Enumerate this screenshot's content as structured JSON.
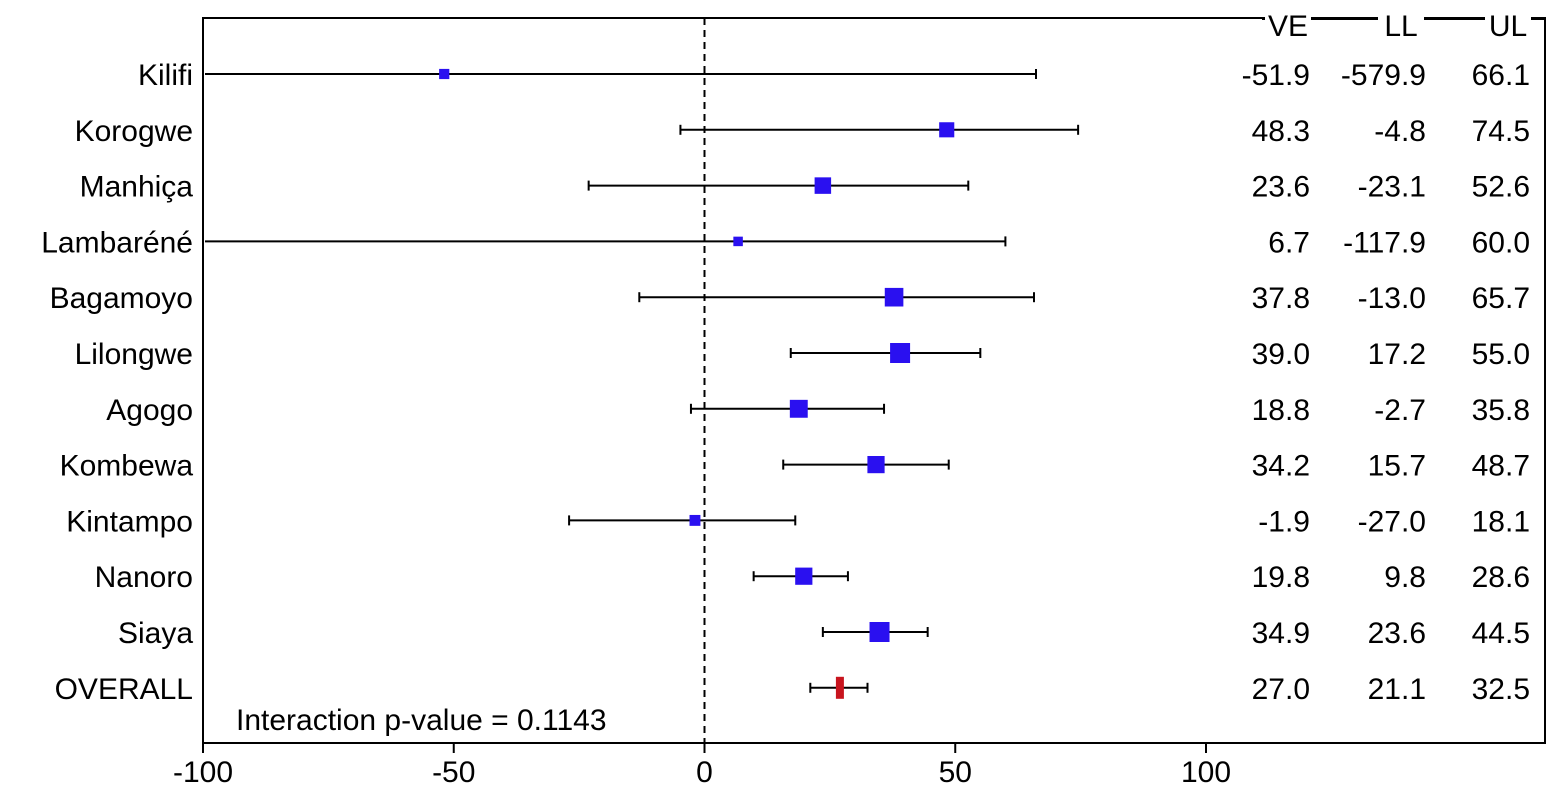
{
  "chart_data": {
    "type": "forest",
    "xlim": [
      -100,
      100
    ],
    "xticks": [
      -100,
      -50,
      0,
      50,
      100
    ],
    "reference_line": 0,
    "table_headers": [
      "VE",
      "LL",
      "UL"
    ],
    "annotation": "Interaction p-value = 0.1143",
    "colors": {
      "site_marker": "#2a10f0",
      "overall_marker": "#c8141e",
      "line": "#000000"
    },
    "rows": [
      {
        "label": "Kilifi",
        "ve": -51.9,
        "ll": -579.9,
        "ul": 66.1,
        "ve_text": "-51.9",
        "ll_text": "-579.9",
        "ul_text": "66.1",
        "weight": 0.3,
        "overall": false
      },
      {
        "label": "Korogwe",
        "ve": 48.3,
        "ll": -4.8,
        "ul": 74.5,
        "ve_text": "48.3",
        "ll_text": "-4.8",
        "ul_text": "74.5",
        "weight": 0.65,
        "overall": false
      },
      {
        "label": "Manhiça",
        "ve": 23.6,
        "ll": -23.1,
        "ul": 52.6,
        "ve_text": "23.6",
        "ll_text": "-23.1",
        "ul_text": "52.6",
        "weight": 0.75,
        "overall": false
      },
      {
        "label": "Lambaréné",
        "ve": 6.7,
        "ll": -117.9,
        "ul": 60.0,
        "ve_text": "6.7",
        "ll_text": "-117.9",
        "ul_text": "60.0",
        "weight": 0.25,
        "overall": false
      },
      {
        "label": "Bagamoyo",
        "ve": 37.8,
        "ll": -13.0,
        "ul": 65.7,
        "ve_text": "37.8",
        "ll_text": "-13.0",
        "ul_text": "65.7",
        "weight": 0.9,
        "overall": false
      },
      {
        "label": "Lilongwe",
        "ve": 39.0,
        "ll": 17.2,
        "ul": 55.0,
        "ve_text": "39.0",
        "ll_text": "17.2",
        "ul_text": "55.0",
        "weight": 1.0,
        "overall": false
      },
      {
        "label": "Agogo",
        "ve": 18.8,
        "ll": -2.7,
        "ul": 35.8,
        "ve_text": "18.8",
        "ll_text": "-2.7",
        "ul_text": "35.8",
        "weight": 0.85,
        "overall": false
      },
      {
        "label": "Kombewa",
        "ve": 34.2,
        "ll": 15.7,
        "ul": 48.7,
        "ve_text": "34.2",
        "ll_text": "15.7",
        "ul_text": "48.7",
        "weight": 0.8,
        "overall": false
      },
      {
        "label": "Kintampo",
        "ve": -1.9,
        "ll": -27.0,
        "ul": 18.1,
        "ve_text": "-1.9",
        "ll_text": "-27.0",
        "ul_text": "18.1",
        "weight": 0.35,
        "overall": false
      },
      {
        "label": "Nanoro",
        "ve": 19.8,
        "ll": 9.8,
        "ul": 28.6,
        "ve_text": "19.8",
        "ll_text": "9.8",
        "ul_text": "28.6",
        "weight": 0.8,
        "overall": false
      },
      {
        "label": "Siaya",
        "ve": 34.9,
        "ll": 23.6,
        "ul": 44.5,
        "ve_text": "34.9",
        "ll_text": "23.6",
        "ul_text": "44.5",
        "weight": 1.0,
        "overall": false
      },
      {
        "label": "OVERALL",
        "ve": 27.0,
        "ll": 21.1,
        "ul": 32.5,
        "ve_text": "27.0",
        "ll_text": "21.1",
        "ul_text": "32.5",
        "weight": 1.0,
        "overall": true
      }
    ]
  }
}
